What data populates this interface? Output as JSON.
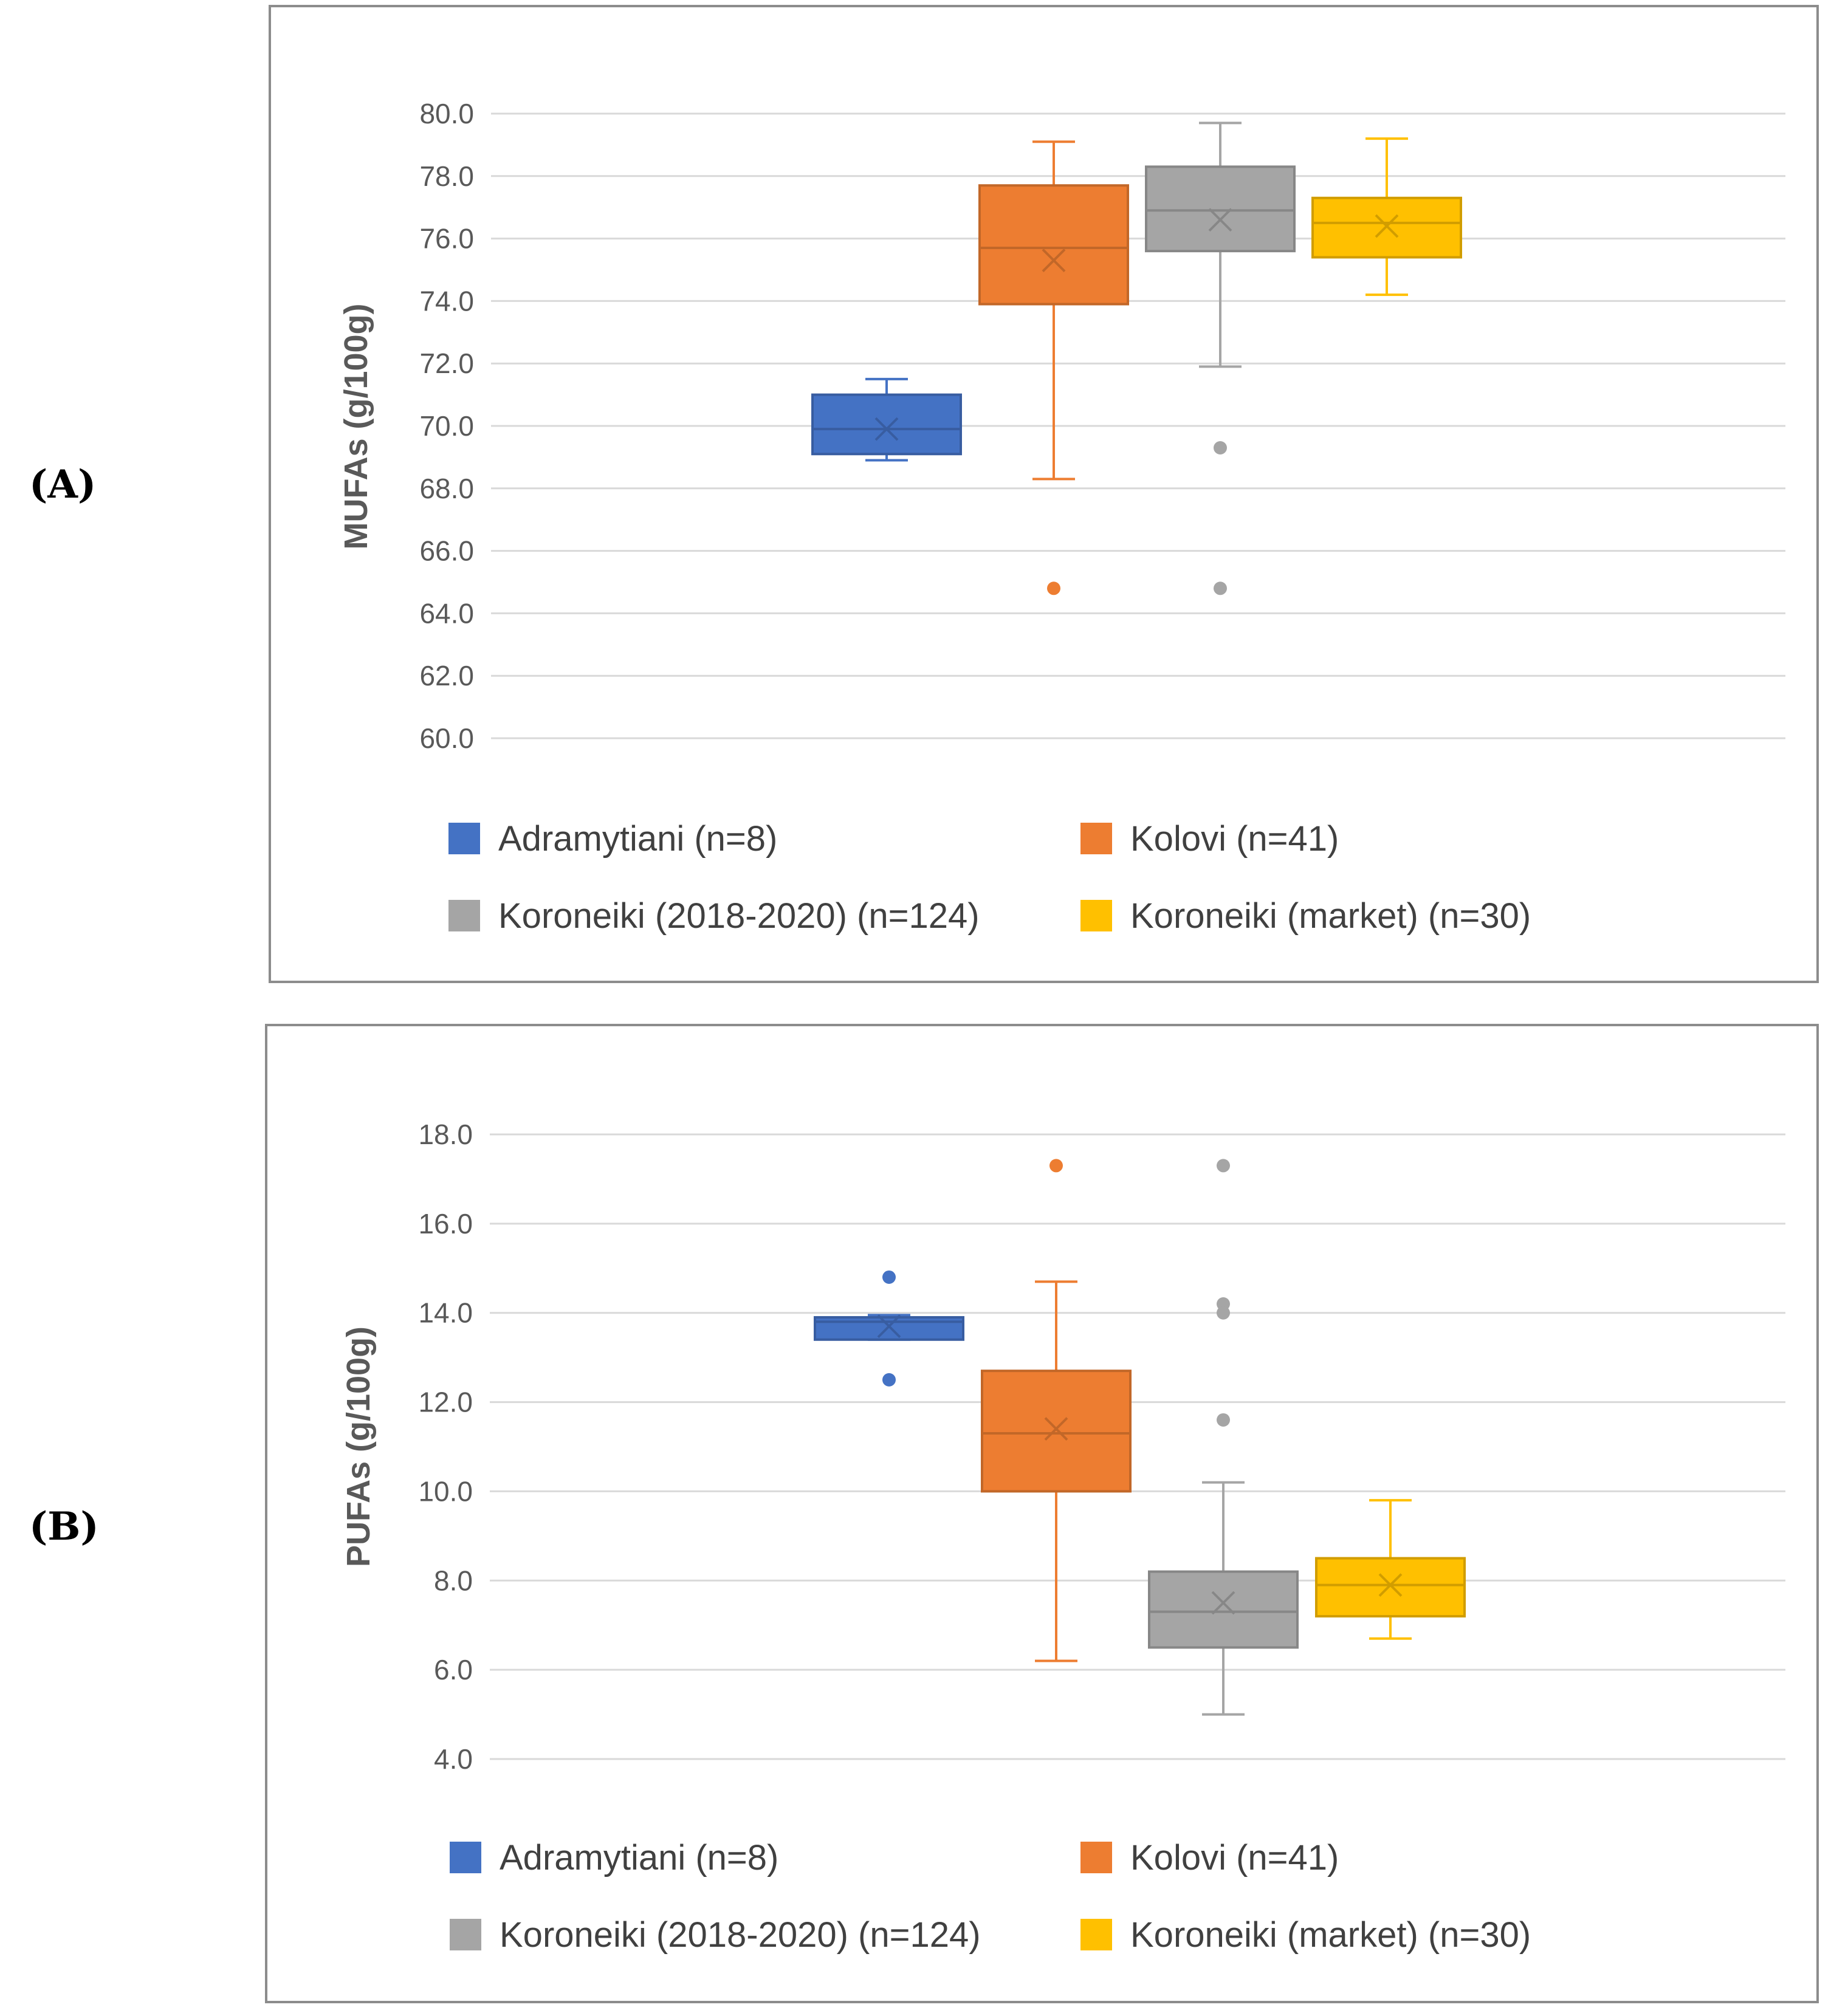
{
  "panels": [
    {
      "label": "(A)"
    },
    {
      "label": "(B)"
    }
  ],
  "chart_data": [
    {
      "type": "boxplot",
      "title": "",
      "xlabel": "",
      "ylabel": "MUFAs (g/100g)",
      "ylim": [
        60,
        80
      ],
      "yticks": [
        "60.0",
        "62.0",
        "64.0",
        "66.0",
        "68.0",
        "70.0",
        "72.0",
        "74.0",
        "76.0",
        "78.0",
        "80.0"
      ],
      "grid": true,
      "legend_position": "bottom",
      "series": [
        {
          "name": "Adramytiani (n=8)",
          "color": "#4472C4",
          "min": 68.9,
          "q1": 69.1,
          "median": 69.9,
          "q3": 71.0,
          "max": 71.5,
          "mean": 69.9,
          "outliers": []
        },
        {
          "name": "Kolovi (n=41)",
          "color": "#ED7D31",
          "min": 68.3,
          "q1": 73.9,
          "median": 75.7,
          "q3": 77.7,
          "max": 79.1,
          "mean": 75.3,
          "outliers": [
            64.8
          ]
        },
        {
          "name": "Koroneiki (2018-2020) (n=124)",
          "color": "#A5A5A5",
          "min": 71.9,
          "q1": 75.6,
          "median": 76.9,
          "q3": 78.3,
          "max": 79.7,
          "mean": 76.6,
          "outliers": [
            69.3,
            64.8
          ]
        },
        {
          "name": "Koroneiki (market) (n=30)",
          "color": "#FFC000",
          "min": 74.2,
          "q1": 75.4,
          "median": 76.5,
          "q3": 77.3,
          "max": 79.2,
          "mean": 76.4,
          "outliers": []
        }
      ]
    },
    {
      "type": "boxplot",
      "title": "",
      "xlabel": "",
      "ylabel": "PUFAs (g/100g)",
      "ylim": [
        4,
        18
      ],
      "yticks": [
        "4.0",
        "6.0",
        "8.0",
        "10.0",
        "12.0",
        "14.0",
        "16.0",
        "18.0"
      ],
      "grid": true,
      "legend_position": "bottom",
      "series": [
        {
          "name": "Adramytiani (n=8)",
          "color": "#4472C4",
          "min": 13.4,
          "q1": 13.4,
          "median": 13.8,
          "q3": 13.9,
          "max": 13.95,
          "mean": 13.7,
          "outliers": [
            14.8,
            12.5
          ]
        },
        {
          "name": "Kolovi (n=41)",
          "color": "#ED7D31",
          "min": 6.2,
          "q1": 10.0,
          "median": 11.3,
          "q3": 12.7,
          "max": 14.7,
          "mean": 11.4,
          "outliers": [
            17.3
          ]
        },
        {
          "name": "Koroneiki (2018-2020) (n=124)",
          "color": "#A5A5A5",
          "min": 5.0,
          "q1": 6.5,
          "median": 7.3,
          "q3": 8.2,
          "max": 10.2,
          "mean": 7.5,
          "outliers": [
            17.3,
            14.2,
            14.0,
            11.6
          ]
        },
        {
          "name": "Koroneiki (market) (n=30)",
          "color": "#FFC000",
          "min": 6.7,
          "q1": 7.2,
          "median": 7.9,
          "q3": 8.5,
          "max": 9.8,
          "mean": 7.9,
          "outliers": []
        }
      ]
    }
  ]
}
